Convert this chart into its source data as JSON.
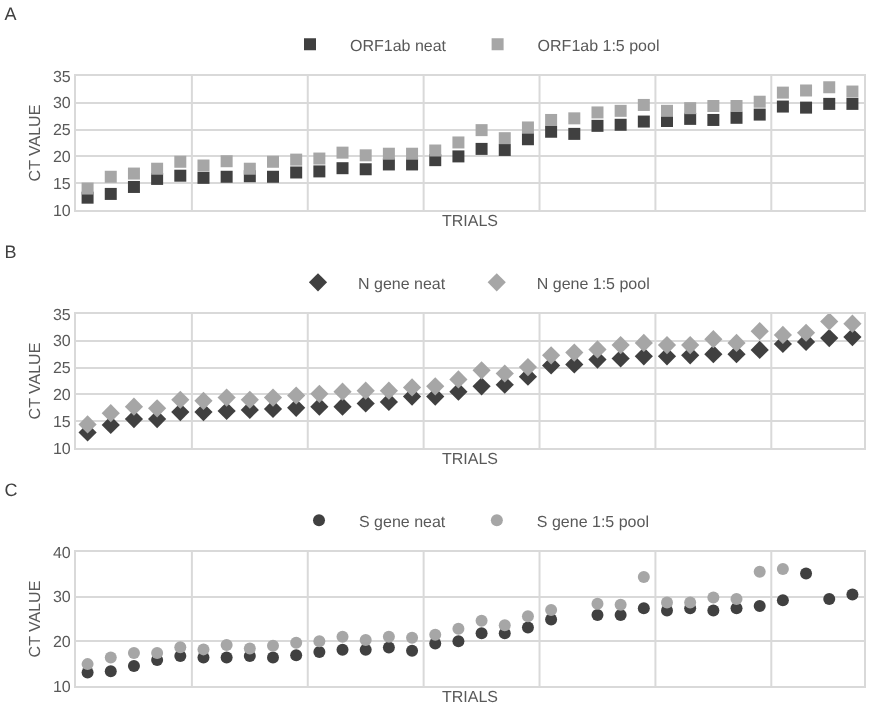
{
  "chart_data": [
    {
      "type": "scatter",
      "title": "A",
      "xlabel": "TRIALS",
      "ylabel": "CT VALUE",
      "marker": "square",
      "legend": "top",
      "grid": true,
      "ylim": [
        10,
        35
      ],
      "yticks": [
        10,
        15,
        20,
        25,
        30,
        35
      ],
      "tick_labels": "y",
      "categories": [
        null,
        null,
        null,
        null,
        null,
        null,
        null,
        null,
        null,
        null,
        null,
        null,
        null,
        null,
        null,
        null,
        null,
        null,
        null,
        null,
        null,
        null,
        null,
        null,
        null,
        null,
        null,
        null,
        null,
        null,
        null,
        null,
        null,
        null
      ],
      "series": [
        {
          "name": "ORF1ab neat",
          "color": "#404040",
          "values": [
            12.3,
            13,
            14.3,
            15.8,
            16.4,
            16,
            16.2,
            16.3,
            16.2,
            17,
            17.2,
            17.8,
            17.6,
            18.5,
            18.5,
            19.3,
            20,
            21.4,
            21.2,
            23.2,
            24.6,
            24.2,
            25.7,
            25.9,
            26.5,
            26.6,
            27,
            26.8,
            27.2,
            27.8,
            29.3,
            29.1,
            29.8,
            29.8
          ]
        },
        {
          "name": "ORF1ab 1:5 pool",
          "color": "#a6a6a6",
          "values": [
            14,
            16.2,
            16.8,
            17.7,
            19,
            18.3,
            19.1,
            17.7,
            19,
            19.4,
            19.6,
            20.7,
            20.2,
            20.5,
            20.5,
            21.1,
            22.6,
            24.9,
            23.4,
            25.4,
            26.8,
            27.1,
            28.2,
            28.5,
            29.6,
            28.5,
            29,
            29.4,
            29.4,
            30.2,
            31.9,
            32.3,
            32.9,
            32.1
          ]
        }
      ]
    },
    {
      "type": "scatter",
      "title": "B",
      "xlabel": "TRIALS",
      "ylabel": "CT VALUE",
      "marker": "diamond",
      "legend": "top",
      "grid": true,
      "ylim": [
        10,
        35
      ],
      "yticks": [
        10,
        15,
        20,
        25,
        30,
        35
      ],
      "tick_labels": "y",
      "categories": [
        null,
        null,
        null,
        null,
        null,
        null,
        null,
        null,
        null,
        null,
        null,
        null,
        null,
        null,
        null,
        null,
        null,
        null,
        null,
        null,
        null,
        null,
        null,
        null,
        null,
        null,
        null,
        null,
        null,
        null,
        null,
        null,
        null,
        null
      ],
      "series": [
        {
          "name": "N gene neat",
          "color": "#404040",
          "values": [
            12.9,
            14.3,
            15.4,
            15.4,
            16.7,
            16.7,
            16.9,
            17.1,
            17.3,
            17.5,
            17.7,
            17.7,
            18.3,
            18.6,
            19.6,
            19.6,
            20.5,
            21.5,
            21.8,
            23.3,
            25.4,
            25.6,
            26.5,
            26.7,
            27.1,
            27.1,
            27.3,
            27.5,
            27.5,
            28.3,
            29.4,
            29.8,
            30.5,
            30.7
          ]
        },
        {
          "name": "N gene 1:5 pool",
          "color": "#a6a6a6",
          "values": [
            14.4,
            16.5,
            17.7,
            17.4,
            19,
            18.8,
            19.4,
            19,
            19.4,
            19.8,
            20.1,
            20.5,
            20.7,
            20.7,
            21.3,
            21.5,
            22.8,
            24.5,
            23.9,
            25.1,
            27.3,
            27.8,
            28.4,
            29.2,
            29.6,
            29.2,
            29.2,
            30.3,
            29.6,
            31.8,
            31.1,
            31.5,
            33.6,
            33.2
          ]
        }
      ]
    },
    {
      "type": "scatter",
      "title": "C",
      "xlabel": "TRIALS",
      "ylabel": "CT VALUE",
      "marker": "circle",
      "legend": "top",
      "grid": true,
      "ylim": [
        10,
        40
      ],
      "yticks": [
        10,
        20,
        30,
        40
      ],
      "tick_labels": "y",
      "categories": [
        null,
        null,
        null,
        null,
        null,
        null,
        null,
        null,
        null,
        null,
        null,
        null,
        null,
        null,
        null,
        null,
        null,
        null,
        null,
        null,
        null,
        null,
        null,
        null,
        null,
        null,
        null,
        null,
        null,
        null,
        null,
        null,
        null,
        null
      ],
      "series": [
        {
          "name": "S gene neat",
          "color": "#404040",
          "values": [
            13,
            13.3,
            14.5,
            15.8,
            16.7,
            16.4,
            16.4,
            16.7,
            16.4,
            16.9,
            17.6,
            18.1,
            18.1,
            18.6,
            17.9,
            19.5,
            20,
            21.8,
            21.8,
            23.1,
            24.9,
            null,
            25.9,
            25.9,
            27.4,
            26.9,
            27.4,
            26.9,
            27.4,
            27.9,
            29.2,
            35.2,
            29.5,
            30.5
          ]
        },
        {
          "name": "S gene 1:5 pool",
          "color": "#a6a6a6",
          "values": [
            14.9,
            16.4,
            17.4,
            17.4,
            18.7,
            18.2,
            19.2,
            18.4,
            19,
            19.7,
            20,
            21,
            20.3,
            21,
            20.8,
            21.5,
            22.8,
            24.6,
            23.6,
            25.6,
            27,
            null,
            28.4,
            28.2,
            34.4,
            28.7,
            28.7,
            29.8,
            29.5,
            35.6,
            36.2,
            null,
            null,
            null
          ]
        }
      ]
    }
  ]
}
